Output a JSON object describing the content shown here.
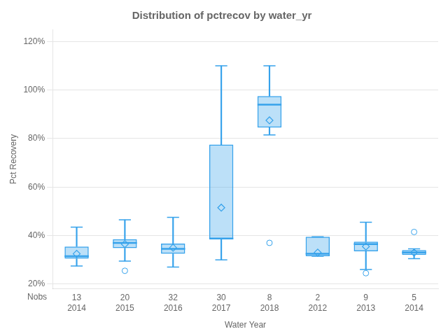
{
  "chart_data": {
    "type": "box",
    "title": "Distribution of pctrecov by water_yr",
    "xlabel": "Water Year",
    "ylabel": "Pct Recovery",
    "categories": [
      "2014",
      "2015",
      "2016",
      "2017",
      "2018",
      "2012",
      "2013",
      "2014"
    ],
    "boxes": [
      {
        "q1": 0.305,
        "median": 0.315,
        "q3": 0.355,
        "mean": 0.325,
        "whisker_low": 0.275,
        "whisker_high": 0.435,
        "fliers": []
      },
      {
        "q1": 0.348,
        "median": 0.37,
        "q3": 0.385,
        "mean": 0.365,
        "whisker_low": 0.295,
        "whisker_high": 0.465,
        "fliers": [
          0.255
        ]
      },
      {
        "q1": 0.325,
        "median": 0.345,
        "q3": 0.367,
        "mean": 0.35,
        "whisker_low": 0.27,
        "whisker_high": 0.475,
        "fliers": []
      },
      {
        "q1": 0.385,
        "median": 0.388,
        "q3": 0.775,
        "mean": 0.515,
        "whisker_low": 0.3,
        "whisker_high": 1.1,
        "fliers": []
      },
      {
        "q1": 0.845,
        "median": 0.94,
        "q3": 0.975,
        "mean": 0.875,
        "whisker_low": 0.815,
        "whisker_high": 1.1,
        "fliers": [
          0.37
        ]
      },
      {
        "q1": 0.315,
        "median": 0.325,
        "q3": 0.395,
        "mean": 0.33,
        "whisker_low": 0.315,
        "whisker_high": 0.395,
        "fliers": []
      },
      {
        "q1": 0.335,
        "median": 0.365,
        "q3": 0.375,
        "mean": 0.355,
        "whisker_low": 0.26,
        "whisker_high": 0.455,
        "fliers": [
          0.245
        ]
      },
      {
        "q1": 0.32,
        "median": 0.33,
        "q3": 0.34,
        "mean": 0.33,
        "whisker_low": 0.305,
        "whisker_high": 0.345,
        "fliers": [
          0.415
        ]
      }
    ],
    "nobs_label": "Nobs",
    "nobs": [
      13,
      20,
      32,
      30,
      8,
      2,
      9,
      5
    ],
    "ylim": [
      0.18,
      1.25
    ],
    "yticks": [
      {
        "value": 0.2,
        "label": "20%"
      },
      {
        "value": 0.4,
        "label": "40%"
      },
      {
        "value": 0.6,
        "label": "60%"
      },
      {
        "value": 0.8,
        "label": "80%"
      },
      {
        "value": 1.0,
        "label": "100%"
      },
      {
        "value": 1.2,
        "label": "120%"
      }
    ],
    "grid": "y",
    "color": "#36a2eb"
  }
}
